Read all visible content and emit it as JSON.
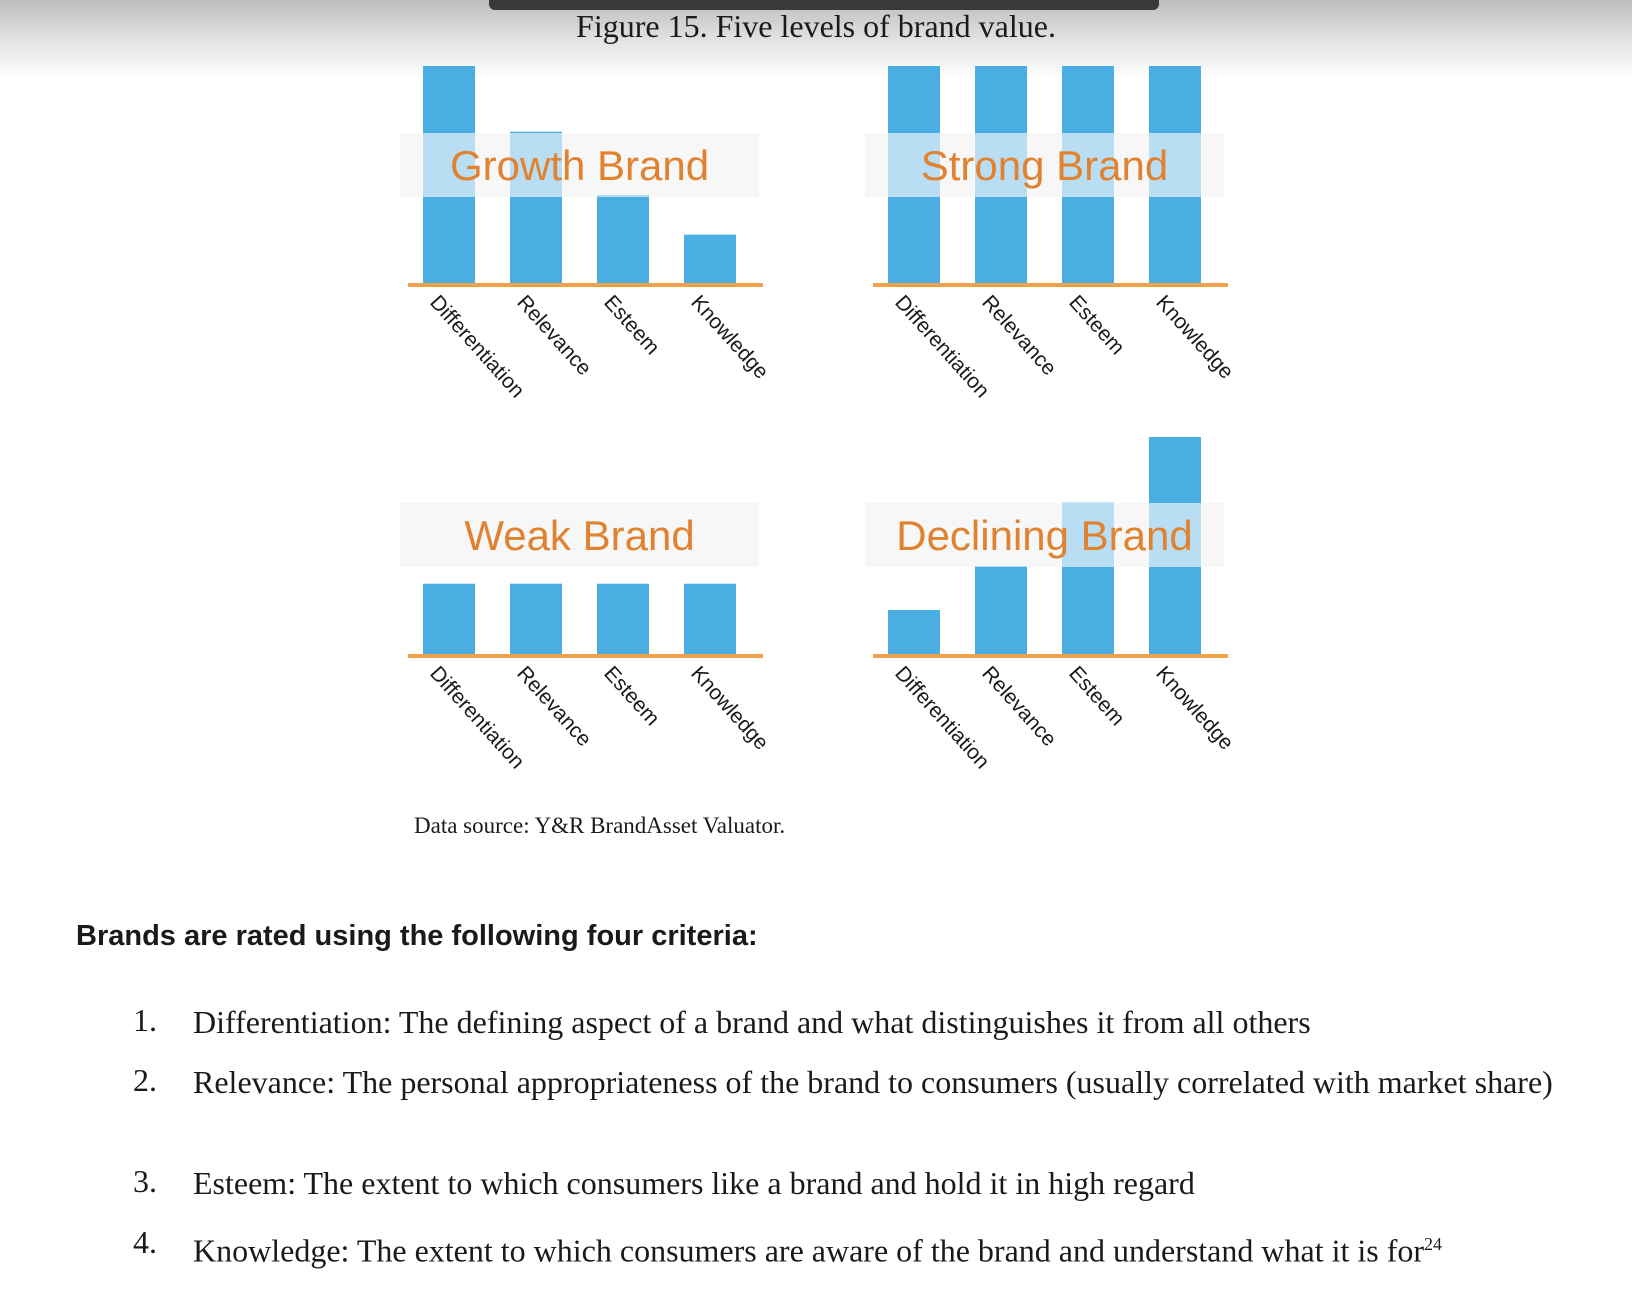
{
  "figure": {
    "title": "Figure 15. Five levels of brand value.",
    "source": "Data source: Y&R BrandAsset Valuator."
  },
  "colors": {
    "bar": "#4aaee2",
    "band": "#b9def4",
    "axis": "#f0a24a",
    "label": "#e0822f"
  },
  "chart_data": [
    {
      "type": "bar",
      "title": "Growth Brand",
      "categories": [
        "Differentiation",
        "Relevance",
        "Esteem",
        "Knowledge"
      ],
      "values": [
        100,
        70,
        41,
        23
      ],
      "ylim": [
        0,
        100
      ]
    },
    {
      "type": "bar",
      "title": "Strong Brand",
      "categories": [
        "Differentiation",
        "Relevance",
        "Esteem",
        "Knowledge"
      ],
      "values": [
        100,
        100,
        100,
        100
      ],
      "ylim": [
        0,
        100
      ]
    },
    {
      "type": "bar",
      "title": "Weak Brand",
      "categories": [
        "Differentiation",
        "Relevance",
        "Esteem",
        "Knowledge"
      ],
      "values": [
        33,
        33,
        33,
        33
      ],
      "ylim": [
        0,
        100
      ]
    },
    {
      "type": "bar",
      "title": "Declining Brand",
      "categories": [
        "Differentiation",
        "Relevance",
        "Esteem",
        "Knowledge"
      ],
      "values": [
        21,
        41,
        70,
        100
      ],
      "ylim": [
        0,
        100
      ]
    }
  ],
  "criteria": {
    "heading": "Brands are rated using the following four criteria:",
    "items": [
      {
        "num": "1.",
        "text": "Differentiation: The defining aspect of a brand and what distinguishes it from all others"
      },
      {
        "num": "2.",
        "text": "Relevance: The personal appropriateness of the brand to consumers (usually correlated with market share)"
      },
      {
        "num": "3.",
        "text": "Esteem: The extent to which consumers like a brand and hold it in high regard"
      },
      {
        "num": "4.",
        "text": "Knowledge: The extent to which consumers are aware of the brand and understand what it is for",
        "footnote": "24"
      }
    ]
  }
}
